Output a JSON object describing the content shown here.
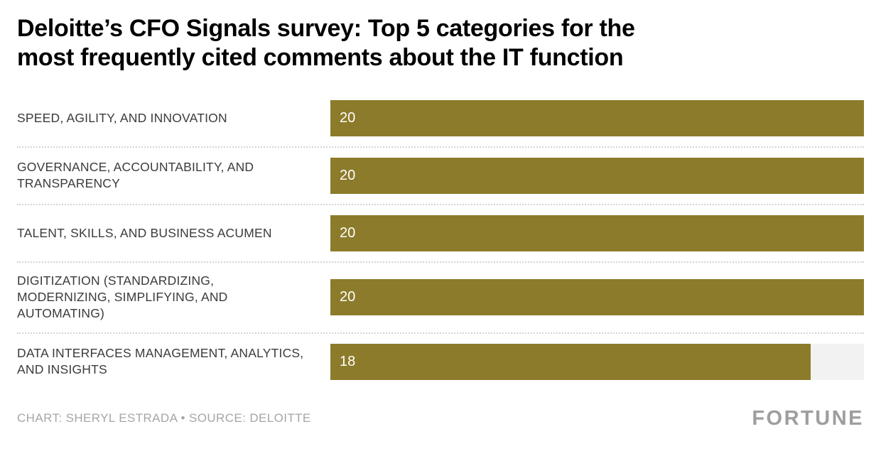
{
  "title": {
    "line1": "Deloitte’s CFO Signals survey: Top 5 categories for the",
    "line2": "most frequently cited comments about the IT function"
  },
  "footer": {
    "credit": "CHART: SHERYL ESTRADA • SOURCE: DELOITTE",
    "logo": "FORTUNE"
  },
  "chart_data": {
    "type": "bar",
    "orientation": "horizontal",
    "title": "Deloitte’s CFO Signals survey: Top 5 categories for the most frequently cited comments about the IT function",
    "categories": [
      "SPEED, AGILITY, AND INNOVATION",
      "GOVERNANCE, ACCOUNTABILITY, AND TRANSPARENCY",
      "TALENT, SKILLS, AND BUSINESS ACUMEN",
      "DIGITIZATION (STANDARDIZING, MODERNIZING, SIMPLIFYING, AND AUTOMATING)",
      "DATA INTERFACES MANAGEMENT, ANALYTICS, AND INSIGHTS"
    ],
    "values": [
      20,
      20,
      20,
      20,
      18
    ],
    "xlim": [
      0,
      20
    ],
    "grid": false,
    "legend": false,
    "value_labels": "inside-left",
    "bar_color": "#8C7B2A",
    "track_color": "#f2f2f2",
    "value_label_color": "#ffffff"
  }
}
